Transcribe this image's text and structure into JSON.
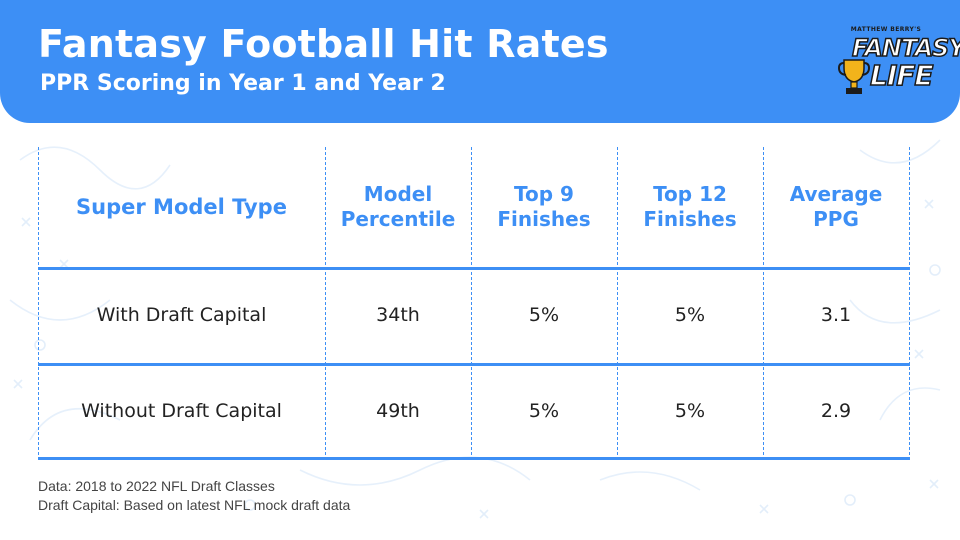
{
  "header": {
    "title": "Fantasy Football Hit Rates",
    "subtitle": "PPR Scoring in Year 1 and Year 2",
    "logo_top": "MATTHEW BERRY'S",
    "logo_word1": "FANTASY",
    "logo_word2": "LIFE"
  },
  "colors": {
    "accent": "#3d8ff5",
    "header_bg": "#3d8ff5",
    "text": "#222222"
  },
  "chart_data": {
    "type": "table",
    "columns": [
      {
        "lines": [
          "Super Model Type"
        ]
      },
      {
        "lines": [
          "Model",
          "Percentile"
        ]
      },
      {
        "lines": [
          "Top 9",
          "Finishes"
        ]
      },
      {
        "lines": [
          "Top 12",
          "Finishes"
        ]
      },
      {
        "lines": [
          "Average",
          "PPG"
        ]
      }
    ],
    "rows": [
      [
        "With Draft Capital",
        "34th",
        "5%",
        "5%",
        "3.1"
      ],
      [
        "Without Draft Capital",
        "49th",
        "5%",
        "5%",
        "2.9"
      ]
    ]
  },
  "footnotes": [
    "Data: 2018 to 2022 NFL Draft Classes",
    "Draft Capital: Based on latest NFL mock draft data"
  ]
}
